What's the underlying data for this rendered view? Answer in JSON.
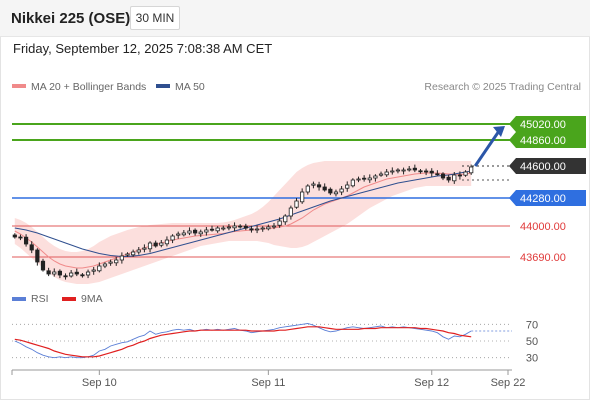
{
  "header": {
    "instrument": "Nikkei 225 (OSE)",
    "interval": "30 MIN",
    "datetime": "Friday, September 12, 2025 7:08:38 AM CET"
  },
  "legend": {
    "items": [
      {
        "label": "MA 20 + Bollinger Bands",
        "color": "#f08a8a"
      },
      {
        "label": "MA 50",
        "color": "#2f4f8f"
      }
    ],
    "source": "Research © 2025 Trading Central"
  },
  "rsi_legend": {
    "items": [
      {
        "label": "RSI",
        "color": "#5b7fd6"
      },
      {
        "label": "9MA",
        "color": "#e02020"
      }
    ]
  },
  "chart_data": [
    {
      "type": "line",
      "ylim": [
        43440,
        45280
      ],
      "x": [
        "Sep 10",
        "Sep 11",
        "Sep 12",
        "Sep 22"
      ],
      "levels": [
        {
          "value": 45020,
          "label": "45020.00",
          "color": "#4aa51c",
          "style": "resistance"
        },
        {
          "value": 44860,
          "label": "44860.00",
          "color": "#4aa51c",
          "style": "resistance"
        },
        {
          "value": 44600,
          "label": "44600.00",
          "color": "#333333",
          "style": "pivot"
        },
        {
          "value": 44280,
          "label": "44280.00",
          "color": "#2f6fe0",
          "style": "support"
        },
        {
          "value": 44000,
          "label": "44000.00",
          "color": "#e05a5a",
          "style": "support"
        },
        {
          "value": 43690,
          "label": "43690.00",
          "color": "#e05a5a",
          "style": "support"
        }
      ],
      "closes": [
        43890,
        43880,
        43820,
        43760,
        43640,
        43560,
        43520,
        43540,
        43510,
        43500,
        43530,
        43520,
        43510,
        43540,
        43560,
        43600,
        43620,
        43640,
        43660,
        43700,
        43720,
        43740,
        43760,
        43780,
        43830,
        43800,
        43830,
        43860,
        43900,
        43920,
        43930,
        43950,
        43930,
        43940,
        43960,
        43960,
        43980,
        43980,
        43990,
        44000,
        43990,
        43980,
        43960,
        43970,
        43980,
        43990,
        44000,
        44050,
        44100,
        44180,
        44250,
        44340,
        44400,
        44420,
        44390,
        44360,
        44330,
        44340,
        44370,
        44410,
        44460,
        44470,
        44470,
        44480,
        44500,
        44520,
        44540,
        44550,
        44560,
        44560,
        44570,
        44560,
        44550,
        44540,
        44530,
        44520,
        44480,
        44460,
        44510,
        44500,
        44540,
        44590
      ],
      "ma20": [
        43950,
        43920,
        43880,
        43840,
        43790,
        43740,
        43690,
        43650,
        43620,
        43600,
        43590,
        43580,
        43580,
        43590,
        43600,
        43620,
        43640,
        43660,
        43680,
        43700,
        43720,
        43740,
        43760,
        43780,
        43800,
        43815,
        43830,
        43845,
        43860,
        43870,
        43880,
        43890,
        43900,
        43905,
        43910,
        43915,
        43920,
        43925,
        43935,
        43945,
        43950,
        43955,
        43960,
        43965,
        43970,
        43975,
        43980,
        43990,
        44000,
        44020,
        44050,
        44080,
        44120,
        44160,
        44190,
        44220,
        44240,
        44260,
        44280,
        44300,
        44330,
        44360,
        44390,
        44410,
        44430,
        44450,
        44470,
        44480,
        44490,
        44500,
        44510,
        44520,
        44525,
        44530,
        44530,
        44530,
        44525,
        44520,
        44520,
        44515,
        44520,
        44530
      ],
      "ma50": [
        43980,
        43970,
        43960,
        43945,
        43930,
        43910,
        43890,
        43870,
        43850,
        43830,
        43810,
        43790,
        43770,
        43755,
        43740,
        43725,
        43715,
        43705,
        43700,
        43695,
        43695,
        43700,
        43705,
        43715,
        43725,
        43740,
        43755,
        43770,
        43785,
        43800,
        43815,
        43830,
        43845,
        43860,
        43875,
        43890,
        43905,
        43920,
        43935,
        43950,
        43965,
        43980,
        43995,
        44010,
        44025,
        44040,
        44055,
        44070,
        44090,
        44110,
        44130,
        44150,
        44170,
        44190,
        44210,
        44230,
        44250,
        44265,
        44280,
        44295,
        44310,
        44325,
        44340,
        44355,
        44370,
        44385,
        44400,
        44415,
        44430,
        44440,
        44450,
        44460,
        44470,
        44480,
        44490,
        44500,
        44505,
        44510,
        44520,
        44530,
        44540,
        44550
      ],
      "bb_upper": [
        44080,
        44060,
        44030,
        43990,
        43940,
        43890,
        43840,
        43800,
        43770,
        43750,
        43740,
        43740,
        43750,
        43770,
        43800,
        43840,
        43870,
        43900,
        43920,
        43940,
        43960,
        43975,
        43990,
        44000,
        44010,
        44015,
        44020,
        44025,
        44030,
        44030,
        44030,
        44030,
        44030,
        44030,
        44030,
        44030,
        44030,
        44035,
        44045,
        44060,
        44080,
        44100,
        44120,
        44150,
        44190,
        44240,
        44300,
        44360,
        44420,
        44480,
        44540,
        44580,
        44610,
        44630,
        44640,
        44650,
        44650,
        44650,
        44650,
        44650,
        44650,
        44650,
        44650,
        44650,
        44650,
        44650,
        44650,
        44650,
        44650,
        44650,
        44650,
        44650,
        44650,
        44650,
        44650,
        44650,
        44650,
        44650,
        44650,
        44650,
        44650,
        44650
      ],
      "bb_lower": [
        43820,
        43780,
        43730,
        43680,
        43630,
        43580,
        43530,
        43490,
        43460,
        43440,
        43430,
        43420,
        43420,
        43420,
        43430,
        43440,
        43460,
        43480,
        43500,
        43520,
        43540,
        43560,
        43580,
        43600,
        43620,
        43640,
        43660,
        43680,
        43700,
        43720,
        43740,
        43760,
        43780,
        43800,
        43810,
        43820,
        43830,
        43840,
        43850,
        43850,
        43850,
        43850,
        43850,
        43850,
        43840,
        43830,
        43810,
        43800,
        43790,
        43780,
        43780,
        43790,
        43810,
        43840,
        43870,
        43900,
        43930,
        43960,
        43990,
        44020,
        44060,
        44100,
        44140,
        44180,
        44210,
        44240,
        44270,
        44300,
        44320,
        44340,
        44360,
        44380,
        44390,
        44400,
        44400,
        44400,
        44400,
        44400,
        44400,
        44400,
        44400,
        44400
      ]
    },
    {
      "type": "line",
      "ylim": [
        20,
        80
      ],
      "ticks": [
        70,
        50,
        30
      ],
      "series": [
        {
          "name": "RSI",
          "color": "#5b7fd6",
          "values": [
            50,
            47,
            43,
            40,
            36,
            33,
            31,
            30,
            31,
            30,
            31,
            30,
            30,
            31,
            33,
            38,
            40,
            44,
            46,
            48,
            49,
            52,
            55,
            57,
            62,
            58,
            60,
            61,
            63,
            64,
            63,
            64,
            62,
            63,
            64,
            63,
            64,
            63,
            64,
            65,
            63,
            62,
            60,
            61,
            62,
            63,
            64,
            66,
            67,
            68,
            69,
            70,
            71,
            69,
            66,
            63,
            61,
            62,
            64,
            66,
            67,
            66,
            65,
            66,
            67,
            68,
            66,
            67,
            66,
            67,
            66,
            65,
            64,
            63,
            62,
            60,
            55,
            52,
            56,
            55,
            58,
            62
          ]
        },
        {
          "name": "9MA",
          "color": "#e02020",
          "values": [
            52,
            51,
            49,
            47,
            45,
            43,
            41,
            38,
            36,
            34,
            33,
            32,
            31,
            31,
            31,
            32,
            34,
            36,
            38,
            40,
            43,
            45,
            48,
            50,
            53,
            55,
            57,
            58,
            59,
            60,
            61,
            62,
            62,
            63,
            63,
            63,
            63,
            63,
            63,
            63,
            63,
            63,
            62,
            62,
            62,
            62,
            62,
            63,
            63,
            64,
            65,
            66,
            67,
            67,
            67,
            66,
            65,
            64,
            64,
            64,
            64,
            64,
            65,
            65,
            65,
            66,
            66,
            66,
            66,
            66,
            66,
            66,
            65,
            65,
            64,
            63,
            62,
            60,
            59,
            57,
            56,
            55
          ]
        }
      ]
    }
  ]
}
